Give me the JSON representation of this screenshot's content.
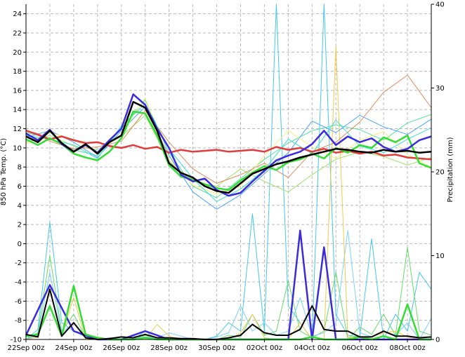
{
  "chart_data": {
    "type": "line",
    "title": "",
    "ylabel_left": "850 hPa Temp. (°C)",
    "ylabel_right": "Precipitation (mm)",
    "x_categories": [
      "22Sep 00z",
      "24Sep 00z",
      "26Sep 00z",
      "28Sep 00z",
      "30Sep 00z",
      "02Oct 00z",
      "04Oct 00z",
      "06Oct 00z",
      "08Oct 00z"
    ],
    "x_range_days": [
      0,
      17
    ],
    "ylim_left": [
      -10,
      25
    ],
    "yticks_left": [
      -10,
      -8,
      -6,
      -4,
      -2,
      0,
      2,
      4,
      6,
      8,
      10,
      12,
      14,
      16,
      18,
      20,
      22,
      24
    ],
    "ylim_right": [
      0,
      40
    ],
    "yticks_right": [
      0,
      10,
      20,
      30,
      40
    ],
    "grid": true,
    "colors": {
      "mean": "#000000",
      "control": "#33dd33",
      "operational": "#3b2bdc",
      "climate": "#e23b3b",
      "members": [
        "#44c8e8",
        "#66dd66",
        "#7ad0ff",
        "#f0c850",
        "#55e0a0",
        "#9be36b",
        "#4aa3ff",
        "#e08a5a",
        "#f4f07a",
        "#38e0d0"
      ]
    },
    "series": [
      {
        "role": "climate",
        "axis": "left",
        "x": [
          0,
          0.5,
          1,
          1.5,
          2,
          2.5,
          3,
          3.5,
          4,
          4.5,
          5,
          5.5,
          6,
          6.5,
          7,
          7.5,
          8,
          8.5,
          9,
          9.5,
          10,
          10.5,
          11,
          11.5,
          12,
          12.5,
          13,
          13.5,
          14,
          14.5,
          15,
          15.5,
          16,
          16.5,
          17
        ],
        "y": [
          11.8,
          11.4,
          10.9,
          11.2,
          10.8,
          10.5,
          10.6,
          10.2,
          10.0,
          10.3,
          9.9,
          10.1,
          9.5,
          9.8,
          9.6,
          9.7,
          9.8,
          9.6,
          9.7,
          9.8,
          9.6,
          10.1,
          9.8,
          10.0,
          9.6,
          9.9,
          9.5,
          9.7,
          9.4,
          9.6,
          9.2,
          9.3,
          9.0,
          8.9,
          8.8
        ]
      },
      {
        "role": "operational",
        "axis": "left",
        "x": [
          0,
          0.5,
          1,
          1.5,
          2,
          2.5,
          3,
          3.5,
          4,
          4.5,
          5,
          5.5,
          6,
          6.5,
          7,
          7.5,
          8,
          8.5,
          9,
          9.5,
          10,
          10.5,
          11,
          11.5,
          12,
          12.5,
          13,
          13.5,
          14,
          14.5,
          15,
          15.5,
          16,
          16.5,
          17
        ],
        "y": [
          11.5,
          10.8,
          11.9,
          10.4,
          9.6,
          10.3,
          9.5,
          10.8,
          12.0,
          15.6,
          14.5,
          12.0,
          10.0,
          7.2,
          6.5,
          6.8,
          5.6,
          5.0,
          5.3,
          6.5,
          7.6,
          8.7,
          9.2,
          9.6,
          10.4,
          11.8,
          10.3,
          11.2,
          10.6,
          11.0,
          10.1,
          9.6,
          9.9,
          10.8,
          11.2
        ]
      },
      {
        "role": "mean",
        "axis": "left",
        "x": [
          0,
          0.5,
          1,
          1.5,
          2,
          2.5,
          3,
          3.5,
          4,
          4.5,
          5,
          5.5,
          6,
          6.5,
          7,
          7.5,
          8,
          8.5,
          9,
          9.5,
          10,
          10.5,
          11,
          11.5,
          12,
          12.5,
          13,
          13.5,
          14,
          14.5,
          15,
          15.5,
          16,
          16.5,
          17
        ],
        "y": [
          11.2,
          10.6,
          11.8,
          10.5,
          9.6,
          10.4,
          9.4,
          10.6,
          11.3,
          14.8,
          14.2,
          11.8,
          8.4,
          7.4,
          6.9,
          6.0,
          5.5,
          5.3,
          6.3,
          7.3,
          7.8,
          8.3,
          8.6,
          9.0,
          9.3,
          9.6,
          9.9,
          9.8,
          9.6,
          9.5,
          9.8,
          9.6,
          9.7,
          9.5,
          9.6
        ]
      },
      {
        "role": "control",
        "axis": "left",
        "x": [
          0,
          0.5,
          1,
          1.5,
          2,
          2.5,
          3,
          3.5,
          4,
          4.5,
          5,
          5.5,
          6,
          6.5,
          7,
          7.5,
          8,
          8.5,
          9,
          9.5,
          10,
          10.5,
          11,
          11.5,
          12,
          12.5,
          13,
          13.5,
          14,
          14.5,
          15,
          15.5,
          16,
          16.5,
          17
        ],
        "y": [
          10.9,
          10.3,
          11.0,
          10.4,
          9.4,
          9.0,
          8.7,
          9.6,
          11.0,
          13.8,
          13.6,
          11.3,
          8.2,
          7.0,
          6.7,
          6.2,
          5.8,
          5.6,
          6.6,
          7.4,
          8.1,
          7.7,
          8.5,
          8.8,
          9.4,
          8.9,
          10.0,
          9.5,
          10.3,
          10.0,
          11.1,
          10.6,
          11.3,
          8.4,
          7.9
        ]
      },
      {
        "role": "member",
        "axis": "left",
        "x": [
          0,
          1,
          2,
          3,
          4,
          5,
          6,
          7,
          8,
          9,
          10,
          11,
          12,
          13,
          14,
          15,
          16,
          17
        ],
        "y": [
          11.6,
          11.0,
          9.8,
          9.2,
          12.0,
          15.0,
          9.5,
          6.0,
          4.8,
          6.8,
          8.8,
          10.5,
          11.8,
          12.4,
          11.9,
          10.8,
          12.6,
          13.5
        ]
      },
      {
        "role": "member",
        "axis": "left",
        "x": [
          0,
          1,
          2,
          3,
          4,
          5,
          6,
          7,
          8,
          9,
          10,
          11,
          12,
          13,
          14,
          15,
          16,
          17
        ],
        "y": [
          10.6,
          11.3,
          10.2,
          9.8,
          11.2,
          13.4,
          8.6,
          6.5,
          6.0,
          7.8,
          6.5,
          5.4,
          7.2,
          8.8,
          9.6,
          9.1,
          8.2,
          9.0
        ]
      },
      {
        "role": "member",
        "axis": "left",
        "x": [
          0,
          1,
          2,
          3,
          4,
          5,
          6,
          7,
          8,
          9,
          10,
          11,
          12,
          13,
          14,
          15,
          16,
          17
        ],
        "y": [
          11.1,
          11.8,
          10.6,
          9.0,
          11.8,
          14.3,
          9.2,
          5.4,
          3.6,
          5.1,
          7.3,
          9.5,
          12.8,
          11.6,
          13.4,
          12.2,
          11.4,
          13.0
        ]
      },
      {
        "role": "member",
        "axis": "left",
        "x": [
          0,
          1,
          2,
          3,
          4,
          5,
          6,
          7,
          8,
          9,
          10,
          11,
          12,
          13,
          14,
          15,
          16,
          17
        ],
        "y": [
          11.9,
          10.7,
          9.9,
          10.1,
          10.7,
          13.9,
          10.6,
          7.8,
          6.3,
          7.2,
          8.4,
          6.9,
          9.6,
          10.6,
          12.7,
          15.8,
          17.6,
          14.2
        ]
      },
      {
        "role": "member",
        "axis": "left",
        "x": [
          0,
          1,
          2,
          3,
          4,
          5,
          6,
          7,
          8,
          9,
          10,
          11,
          12,
          13,
          14,
          15,
          16,
          17
        ],
        "y": [
          10.4,
          11.6,
          10.9,
          9.5,
          11.4,
          15.2,
          8.8,
          6.1,
          5.2,
          6.0,
          9.2,
          11.8,
          10.1,
          8.9,
          10.8,
          11.7,
          9.3,
          8.0
        ]
      },
      {
        "role": "member",
        "axis": "left",
        "x": [
          0,
          1,
          2,
          3,
          4,
          5,
          6,
          7,
          8,
          9,
          10,
          11,
          12,
          13,
          14,
          15,
          16,
          17
        ],
        "y": [
          11.3,
          10.9,
          10.3,
          8.9,
          12.3,
          14.6,
          9.9,
          6.8,
          4.4,
          5.7,
          7.7,
          10.9,
          9.4,
          12.9,
          10.2,
          9.5,
          10.9,
          12.1
        ]
      },
      {
        "role": "precip_mean",
        "axis": "right",
        "x": [
          0,
          0.5,
          1,
          1.5,
          2,
          2.5,
          3,
          3.5,
          4,
          4.5,
          5,
          5.5,
          6,
          6.5,
          7,
          7.5,
          8,
          8.5,
          9,
          9.5,
          10,
          10.5,
          11,
          11.5,
          12,
          12.5,
          13,
          13.5,
          14,
          14.5,
          15,
          15.5,
          16,
          16.5,
          17
        ],
        "y": [
          0.6,
          0.3,
          6.0,
          0.4,
          2.0,
          0.2,
          0.0,
          0.1,
          0.3,
          0.2,
          0.6,
          0.2,
          0.2,
          0.1,
          0.1,
          0.0,
          0.0,
          0.2,
          0.5,
          1.8,
          0.8,
          0.5,
          0.5,
          1.2,
          4.0,
          1.2,
          1.0,
          1.0,
          0.3,
          0.3,
          1.0,
          0.4,
          0.4,
          0.2,
          0.3
        ]
      },
      {
        "role": "precip_operational",
        "axis": "right",
        "x": [
          0,
          1,
          2,
          3,
          4,
          5,
          6,
          7,
          8,
          9,
          10,
          11,
          11.5,
          12,
          12.5,
          13,
          13.5,
          14,
          15,
          16,
          17
        ],
        "y": [
          0.5,
          6.5,
          1.0,
          0.0,
          0.0,
          1.0,
          0.0,
          0.0,
          0.0,
          0.0,
          0.0,
          0.0,
          13.0,
          0.0,
          11.0,
          0.0,
          0.0,
          0.0,
          0.0,
          0.0,
          0.0
        ]
      },
      {
        "role": "precip_control",
        "axis": "right",
        "x": [
          0,
          0.5,
          1,
          1.5,
          2,
          2.5,
          3,
          3.5,
          4,
          4.5,
          5,
          5.5,
          6,
          6.5,
          7,
          7.5,
          8,
          8.5,
          9,
          9.5,
          10,
          10.5,
          11,
          11.5,
          12,
          12.5,
          13,
          13.5,
          14,
          14.5,
          15,
          15.5,
          16,
          16.5,
          17
        ],
        "y": [
          0.4,
          0.6,
          4.0,
          0.4,
          6.4,
          0.6,
          0.2,
          0.0,
          0.0,
          0.0,
          0.2,
          0.0,
          0.0,
          0.0,
          0.0,
          0.0,
          0.0,
          0.0,
          0.0,
          0.0,
          0.0,
          0.0,
          0.0,
          0.0,
          0.3,
          0.0,
          0.0,
          0.0,
          0.3,
          0.0,
          0.4,
          0.0,
          4.2,
          0.0,
          0.0
        ]
      },
      {
        "role": "precip_member",
        "axis": "right",
        "x": [
          0,
          0.5,
          1,
          1.5,
          2,
          2.5,
          3,
          3.5,
          4,
          4.5,
          5,
          5.5,
          6,
          6.5,
          7,
          7.5,
          8,
          8.5,
          9,
          9.5,
          10,
          10.5,
          11,
          11.5,
          12,
          12.5,
          13,
          13.5,
          14,
          14.5,
          15,
          15.5,
          16,
          16.5,
          17
        ],
        "y": [
          0,
          1.2,
          14.0,
          2.0,
          1.0,
          0.3,
          0.0,
          0.0,
          0.0,
          0.0,
          1.0,
          0.0,
          0.0,
          0.0,
          0.0,
          0.0,
          0.4,
          2.0,
          1.0,
          15.0,
          1.0,
          40.0,
          4.0,
          2.0,
          0.0,
          40.0,
          3.0,
          0.5,
          0.3,
          12.0,
          0.0,
          3.0,
          1.0,
          8.0,
          6.0
        ]
      },
      {
        "role": "precip_member",
        "axis": "right",
        "x": [
          0,
          0.5,
          1,
          1.5,
          2,
          2.5,
          3,
          3.5,
          4,
          4.5,
          5,
          5.5,
          6,
          6.5,
          7,
          7.5,
          8,
          8.5,
          9,
          9.5,
          10,
          10.5,
          11,
          11.5,
          12,
          12.5,
          13,
          13.5,
          14,
          14.5,
          15,
          15.5,
          16,
          16.5,
          17
        ],
        "y": [
          0,
          0.8,
          10.0,
          1.0,
          3.0,
          0.2,
          0.2,
          0.0,
          0.0,
          0.0,
          0.5,
          0.0,
          0.0,
          0.0,
          0.0,
          0.0,
          0.0,
          0.5,
          0.3,
          3.0,
          0.5,
          1.0,
          7.0,
          1.0,
          0.2,
          1.0,
          8.0,
          0.0,
          1.5,
          0.6,
          3.0,
          0.5,
          11.0,
          1.0,
          0.5
        ]
      },
      {
        "role": "precip_member",
        "axis": "right",
        "x": [
          0,
          0.5,
          1,
          1.5,
          2,
          2.5,
          3,
          3.5,
          4,
          4.5,
          5,
          5.5,
          6,
          6.5,
          7,
          7.5,
          8,
          8.5,
          9,
          9.5,
          10,
          10.5,
          11,
          11.5,
          12,
          12.5,
          13,
          13.5,
          14,
          14.5,
          15,
          15.5,
          16,
          16.5,
          17
        ],
        "y": [
          0,
          0.5,
          8.0,
          0.8,
          2.0,
          0.4,
          0.0,
          0.2,
          0.0,
          0.4,
          0.3,
          0.2,
          0.8,
          0.4,
          0.0,
          0.0,
          0.3,
          0.8,
          4.0,
          1.0,
          2.0,
          0.5,
          1.0,
          5.0,
          0.4,
          0.8,
          2.0,
          13.0,
          0.8,
          0.3,
          1.0,
          0.5,
          2.0,
          0.0,
          2.5
        ]
      },
      {
        "role": "precip_member",
        "axis": "right",
        "x": [
          0,
          0.5,
          1,
          1.5,
          2,
          2.5,
          3,
          3.5,
          4,
          4.5,
          5,
          5.5,
          6,
          6.5,
          7,
          7.5,
          8,
          8.5,
          9,
          9.5,
          10,
          10.5,
          11,
          11.5,
          12,
          12.5,
          13,
          13.5,
          14,
          14.5,
          15,
          15.5,
          16,
          16.5,
          17
        ],
        "y": [
          0,
          0.3,
          6.0,
          0.4,
          5.0,
          0.0,
          0.3,
          0.0,
          0.3,
          0.0,
          0.0,
          1.8,
          0.4,
          0.0,
          0.0,
          0.0,
          0.0,
          0.0,
          0.8,
          3.0,
          0.2,
          0.0,
          0.0,
          2.0,
          0.0,
          0.0,
          35.0,
          0.3,
          0.3,
          0.3,
          0.8,
          1.0,
          0.3,
          0.0,
          0.0
        ]
      }
    ]
  }
}
